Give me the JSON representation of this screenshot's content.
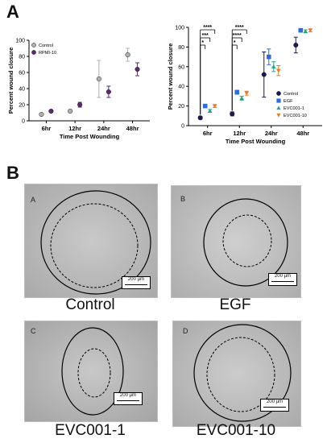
{
  "panel_a_letter": "A",
  "panel_b_letter": "B",
  "chart_data": [
    {
      "type": "scatter",
      "ylabel": "Percent wound closure",
      "xlabel": "Time Post Wounding",
      "categories": [
        "6hr",
        "12hr",
        "24hr",
        "48hr"
      ],
      "ylim": [
        0,
        100
      ],
      "yticks": [
        0,
        20,
        40,
        60,
        80,
        100
      ],
      "legend": "top-left",
      "series": [
        {
          "name": "Control",
          "color": "#b0b0b0",
          "marker": "circle",
          "values": [
            8,
            12,
            52,
            82
          ],
          "errors": [
            1.5,
            2,
            23,
            8
          ]
        },
        {
          "name": "RPMI-10",
          "color": "#5a2a6e",
          "marker": "circle",
          "values": [
            12,
            20,
            36,
            64
          ],
          "errors": [
            1.5,
            3,
            7,
            8
          ]
        }
      ]
    },
    {
      "type": "scatter",
      "ylabel": "Percent wound closure",
      "xlabel": "Time Post Wounding",
      "categories": [
        "6hr",
        "12hr",
        "24hr",
        "48hr"
      ],
      "ylim": [
        0,
        100
      ],
      "yticks": [
        0,
        20,
        40,
        60,
        80,
        100
      ],
      "legend": "bottom-right",
      "series": [
        {
          "name": "Control",
          "color": "#1a1a4e",
          "marker": "circle",
          "values": [
            8,
            12,
            52,
            82
          ],
          "errors": [
            1.5,
            2,
            23,
            8
          ]
        },
        {
          "name": "EGF",
          "color": "#2b6fd6",
          "marker": "square",
          "values": [
            20,
            34,
            70,
            97
          ],
          "errors": [
            1.5,
            2,
            8,
            1.5
          ]
        },
        {
          "name": "EVC001-1",
          "color": "#2e9e8a",
          "marker": "triangle-up",
          "values": [
            15,
            28,
            60,
            96
          ],
          "errors": [
            1.5,
            2,
            5,
            1.5
          ]
        },
        {
          "name": "EVC001-10",
          "color": "#f07a2a",
          "marker": "triangle-down",
          "values": [
            20,
            33,
            56,
            97
          ],
          "errors": [
            1.5,
            2,
            5,
            1.5
          ]
        }
      ],
      "significance": [
        {
          "group": "6hr",
          "labels": [
            "****",
            "***",
            "*"
          ]
        },
        {
          "group": "12hr",
          "labels": [
            "****",
            "****",
            "*"
          ]
        }
      ]
    }
  ],
  "micrographs": [
    {
      "label": "A",
      "scale": "200 µm",
      "caption": "Control"
    },
    {
      "label": "B",
      "scale": "200 µm",
      "caption": "EGF"
    },
    {
      "label": "C",
      "scale": "200 µm",
      "caption": "EVC001-1"
    },
    {
      "label": "D",
      "scale": "200 µm",
      "caption": "EVC001-10"
    }
  ]
}
